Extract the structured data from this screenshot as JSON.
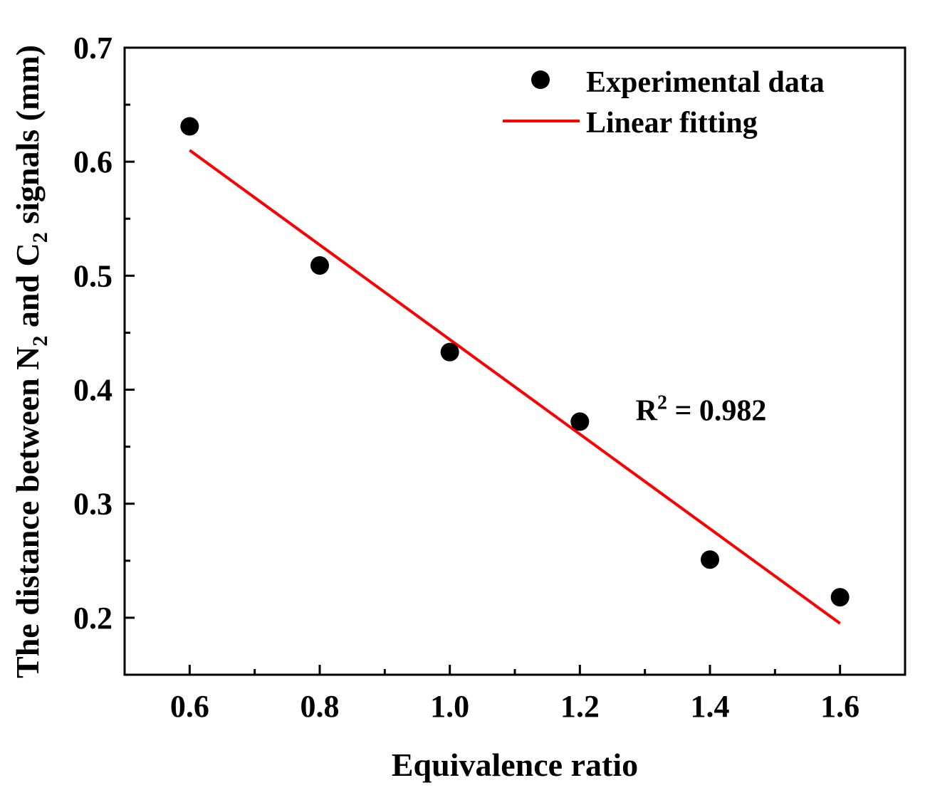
{
  "chart_data": {
    "type": "scatter",
    "title": "",
    "xlabel": "Equivalence ratio",
    "ylabel": {
      "prefix": "The distance between  N",
      "sub1": "2",
      "middle": " and C",
      "sub2": "2",
      "suffix": " signals (mm)"
    },
    "xlim": [
      0.5,
      1.7
    ],
    "ylim": [
      0.15,
      0.7
    ],
    "x_ticks": [
      0.6,
      0.8,
      1.0,
      1.2,
      1.4,
      1.6
    ],
    "x_tick_labels": [
      "0.6",
      "0.8",
      "1.0",
      "1.2",
      "1.4",
      "1.6"
    ],
    "x_minor_ticks": [
      0.7,
      0.9,
      1.1,
      1.3,
      1.5
    ],
    "y_ticks": [
      0.2,
      0.3,
      0.4,
      0.5,
      0.6,
      0.7
    ],
    "y_tick_labels": [
      "0.2",
      "0.3",
      "0.4",
      "0.5",
      "0.6",
      "0.7"
    ],
    "y_minor_ticks": [
      0.25,
      0.35,
      0.45,
      0.55,
      0.65
    ],
    "grid": false,
    "series": [
      {
        "name": "Experimental data",
        "kind": "scatter",
        "color": "#000000",
        "x": [
          0.6,
          0.8,
          1.0,
          1.2,
          1.4,
          1.6
        ],
        "y": [
          0.631,
          0.509,
          0.433,
          0.372,
          0.251,
          0.218
        ]
      },
      {
        "name": "Linear fitting",
        "kind": "line",
        "color": "#ff0000",
        "x": [
          0.6,
          1.6
        ],
        "y": [
          0.61,
          0.195
        ]
      }
    ],
    "legend": {
      "position": "top-right"
    },
    "annotation": {
      "base": "R",
      "sup": "2",
      "rest": " = 0.982",
      "at": [
        1.3,
        0.375
      ]
    }
  }
}
